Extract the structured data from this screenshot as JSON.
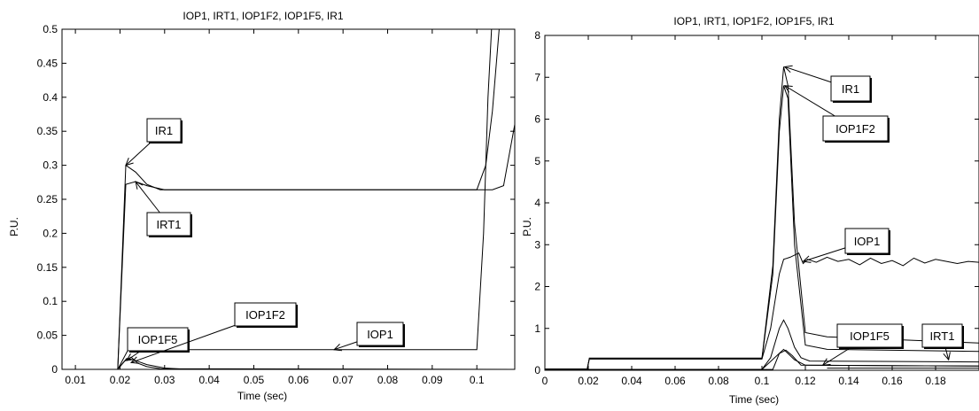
{
  "chart_data": [
    {
      "type": "line",
      "title": "IOP1, IRT1, IOP1F2, IOP1F5, IR1",
      "xlabel": "Time (sec)",
      "ylabel": "P.U.",
      "xlim": [
        0.007,
        0.1085
      ],
      "ylim": [
        0,
        0.5
      ],
      "xticks": [
        0.01,
        0.02,
        0.03,
        0.04,
        0.05,
        0.06,
        0.07,
        0.08,
        0.09,
        0.1
      ],
      "xtick_labels": [
        "0.01",
        "0.02",
        "0.03",
        "0.04",
        "0.05",
        "0.06",
        "0.07",
        "0.08",
        "0.09",
        "0.1"
      ],
      "yticks": [
        0,
        0.05,
        0.1,
        0.15,
        0.2,
        0.25,
        0.3,
        0.35,
        0.4,
        0.45,
        0.5
      ],
      "ytick_labels": [
        "0",
        "0.05",
        "0.1",
        "0.15",
        "0.2",
        "0.25",
        "0.3",
        "0.35",
        "0.4",
        "0.45",
        "0.5"
      ],
      "grid": false,
      "series": [
        {
          "name": "IR1",
          "x": [
            0.007,
            0.0195,
            0.0213,
            0.0235,
            0.026,
            0.029,
            0.1,
            0.102,
            0.1035,
            0.105,
            0.107
          ],
          "y": [
            0,
            0,
            0.3,
            0.29,
            0.272,
            0.264,
            0.264,
            0.3,
            0.38,
            0.5,
            0.55
          ]
        },
        {
          "name": "IRT1",
          "x": [
            0.007,
            0.0195,
            0.0213,
            0.0235,
            0.026,
            0.03,
            0.1035,
            0.106,
            0.1085
          ],
          "y": [
            0,
            0,
            0.272,
            0.276,
            0.27,
            0.264,
            0.264,
            0.27,
            0.36
          ]
        },
        {
          "name": "IOP1",
          "x": [
            0.007,
            0.0195,
            0.022,
            0.025,
            0.1,
            0.1015,
            0.1025,
            0.1033,
            0.104
          ],
          "y": [
            0,
            0,
            0.031,
            0.029,
            0.029,
            0.2,
            0.4,
            0.5,
            0.55
          ]
        },
        {
          "name": "IOP1F2",
          "x": [
            0.007,
            0.0195,
            0.0215,
            0.023,
            0.026,
            0.03,
            0.035,
            0.1085
          ],
          "y": [
            0,
            0,
            0.016,
            0.014,
            0.007,
            0.002,
            0,
            0
          ]
        },
        {
          "name": "IOP1F5",
          "x": [
            0.007,
            0.0195,
            0.021,
            0.0225,
            0.024,
            0.026,
            0.029,
            0.1085
          ],
          "y": [
            0,
            0,
            0.012,
            0.018,
            0.009,
            0.004,
            0.001,
            0
          ]
        }
      ],
      "annotations": [
        {
          "text": "IR1",
          "target": [
            0.0213,
            0.3
          ]
        },
        {
          "text": "IRT1",
          "target": [
            0.0235,
            0.276
          ]
        },
        {
          "text": "IOP1F5",
          "target": [
            0.0215,
            0.013
          ]
        },
        {
          "text": "IOP1F2",
          "target": [
            0.0225,
            0.01
          ]
        },
        {
          "text": "IOP1",
          "target": [
            0.068,
            0.029
          ]
        }
      ]
    },
    {
      "type": "line",
      "title": "IOP1, IRT1, IOP1F2, IOP1F5, IR1",
      "xlabel": "Time (sec)",
      "ylabel": "P.U.",
      "xlim": [
        0,
        0.2
      ],
      "ylim": [
        0,
        8
      ],
      "xticks": [
        0,
        0.02,
        0.04,
        0.06,
        0.08,
        0.1,
        0.12,
        0.14,
        0.16,
        0.18
      ],
      "xtick_labels": [
        "0",
        "0.02",
        "0.04",
        "0.06",
        "0.08",
        "0.1",
        "0.12",
        "0.14",
        "0.16",
        "0.18"
      ],
      "yticks": [
        0,
        1,
        2,
        3,
        4,
        5,
        6,
        7,
        8
      ],
      "ytick_labels": [
        "0",
        "1",
        "2",
        "3",
        "4",
        "5",
        "6",
        "7",
        "8"
      ],
      "grid": false,
      "series": [
        {
          "name": "IR1",
          "x": [
            0,
            0.0195,
            0.0205,
            0.1,
            0.105,
            0.108,
            0.11,
            0.112,
            0.115,
            0.12,
            0.13,
            0.2
          ],
          "y": [
            0.03,
            0.03,
            0.29,
            0.29,
            2.5,
            6.0,
            7.25,
            6.8,
            3.5,
            0.9,
            0.8,
            0.65
          ]
        },
        {
          "name": "IOP1F2",
          "x": [
            0,
            0.0195,
            0.0205,
            0.1,
            0.105,
            0.108,
            0.11,
            0.112,
            0.115,
            0.12,
            0.13,
            0.2
          ],
          "y": [
            0.03,
            0.03,
            0.27,
            0.27,
            2.3,
            5.7,
            6.8,
            6.5,
            3.0,
            0.6,
            0.5,
            0.45
          ]
        },
        {
          "name": "IOP1",
          "x": [
            0,
            0.0195,
            0.0205,
            0.1,
            0.104,
            0.108,
            0.11,
            0.113,
            0.117,
            0.119,
            0.121,
            0.125,
            0.13,
            0.135,
            0.14,
            0.145,
            0.15,
            0.155,
            0.16,
            0.165,
            0.17,
            0.175,
            0.18,
            0.185,
            0.19,
            0.195,
            0.2
          ],
          "y": [
            0.03,
            0.03,
            0.27,
            0.27,
            1.0,
            2.3,
            2.65,
            2.7,
            2.8,
            2.55,
            2.65,
            2.58,
            2.7,
            2.6,
            2.65,
            2.52,
            2.68,
            2.55,
            2.62,
            2.5,
            2.68,
            2.56,
            2.65,
            2.6,
            2.55,
            2.6,
            2.58
          ]
        },
        {
          "name": "IOP1F5",
          "x": [
            0,
            0.1,
            0.104,
            0.108,
            0.11,
            0.112,
            0.115,
            0.118,
            0.122,
            0.2
          ],
          "y": [
            0.02,
            0.02,
            0.3,
            1.0,
            1.2,
            1.0,
            0.55,
            0.3,
            0.22,
            0.2
          ]
        },
        {
          "name": "IRT1",
          "x": [
            0,
            0.105,
            0.108,
            0.111,
            0.114,
            0.118,
            0.2
          ],
          "y": [
            0.02,
            0.02,
            0.4,
            0.48,
            0.35,
            0.12,
            0.1
          ]
        }
      ],
      "extra_lines": [
        {
          "x": [
            0,
            0.1,
            0.11,
            0.115,
            0.12,
            0.2
          ],
          "y": [
            0.02,
            0.02,
            0.5,
            0.25,
            0.12,
            0.1
          ]
        },
        {
          "x": [
            0.13,
            0.2
          ],
          "y": [
            0.05,
            0.05
          ]
        }
      ],
      "annotations": [
        {
          "text": "IR1",
          "target": [
            0.1105,
            7.25
          ]
        },
        {
          "text": "IOP1F2",
          "target": [
            0.1105,
            6.8
          ]
        },
        {
          "text": "IOP1",
          "target": [
            0.119,
            2.6
          ]
        },
        {
          "text": "IOP1F5",
          "target": [
            0.128,
            0.12
          ]
        },
        {
          "text": "IRT1",
          "target": [
            0.186,
            0.25
          ]
        }
      ]
    }
  ]
}
